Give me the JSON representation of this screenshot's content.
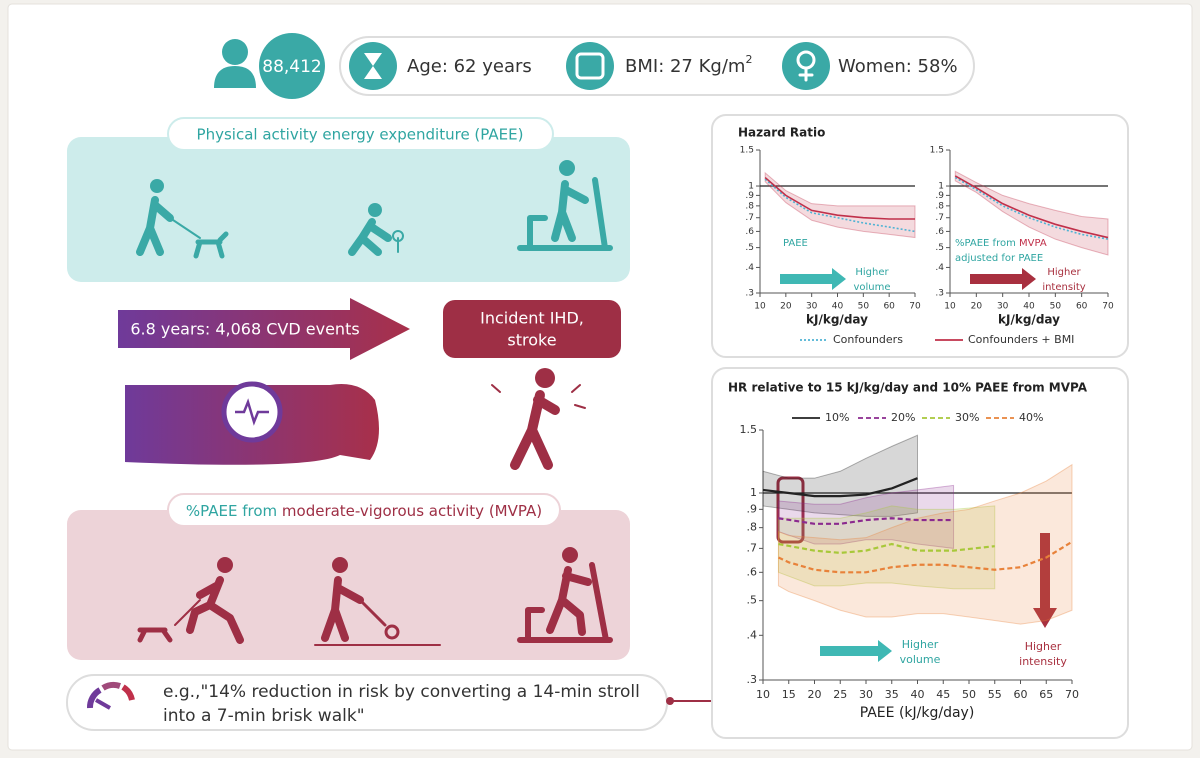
{
  "stats": {
    "count": "88,412",
    "age": "Age: 62 years",
    "bmi": "BMI: 27 Kg/m",
    "bmi_sup": "2",
    "women": "Women: 58%"
  },
  "paee_panel": {
    "title": "Physical activity energy expenditure (PAEE)"
  },
  "followup": "6.8 years: 4,068 CVD events",
  "outcome": [
    "Incident IHD,",
    "stroke"
  ],
  "mvpa_panel": {
    "title_part1": "%PAEE from",
    "title_part2": "moderate-vigorous activity (MVPA)"
  },
  "example": [
    "e.g.,\"14% reduction in risk by converting a 14-min stroll",
    "into a 7-min brisk walk\""
  ],
  "chart_data": [
    {
      "type": "line",
      "title": "Hazard Ratio",
      "log_y": true,
      "xlim": [
        10,
        70
      ],
      "ylim": [
        0.3,
        1.5
      ],
      "xticks": [
        10,
        20,
        30,
        40,
        50,
        60,
        70
      ],
      "yticks": [
        1.5,
        1,
        {
          "value": 0.9,
          "label": ".9"
        },
        {
          "value": 0.8,
          "label": ".8"
        },
        {
          "value": 0.7,
          "label": ".7"
        },
        {
          "value": 0.6,
          "label": ".6"
        },
        {
          "value": 0.5,
          "label": ".5"
        },
        {
          "value": 0.4,
          "label": ".4"
        },
        {
          "value": 0.3,
          "label": ".3"
        }
      ],
      "xlabel": "kJ/kg/day",
      "reference_line": 1,
      "legend": "bottom",
      "annotations": {
        "label": "PAEE",
        "arrow_text": [
          "Higher",
          "volume"
        ]
      },
      "series": [
        {
          "name": "Confounders",
          "color": "#4fb3d4",
          "dash": "dotted",
          "x": [
            12,
            20,
            30,
            40,
            50,
            60,
            70
          ],
          "values": [
            1.08,
            0.88,
            0.74,
            0.7,
            0.66,
            0.63,
            0.6
          ]
        },
        {
          "name": "Confounders + BMI",
          "color": "#c0304a",
          "dash": "solid",
          "x": [
            12,
            20,
            30,
            40,
            50,
            60,
            70
          ],
          "values": [
            1.1,
            0.9,
            0.76,
            0.72,
            0.7,
            0.69,
            0.69
          ],
          "ci_lower": [
            1.05,
            0.83,
            0.68,
            0.63,
            0.6,
            0.58,
            0.56
          ],
          "ci_upper": [
            1.16,
            0.95,
            0.82,
            0.8,
            0.8,
            0.8,
            0.8
          ]
        }
      ]
    },
    {
      "type": "line",
      "log_y": true,
      "xlim": [
        10,
        70
      ],
      "ylim": [
        0.3,
        1.5
      ],
      "xticks": [
        10,
        20,
        30,
        40,
        50,
        60,
        70
      ],
      "yticks": [
        1.5,
        1,
        {
          "value": 0.9,
          "label": ".9"
        },
        {
          "value": 0.8,
          "label": ".8"
        },
        {
          "value": 0.7,
          "label": ".7"
        },
        {
          "value": 0.6,
          "label": ".6"
        },
        {
          "value": 0.5,
          "label": ".5"
        },
        {
          "value": 0.4,
          "label": ".4"
        },
        {
          "value": 0.3,
          "label": ".3"
        }
      ],
      "xlabel": "kJ/kg/day",
      "reference_line": 1,
      "annotations": {
        "label": [
          "%PAEE from",
          "MVPA",
          "adjusted for PAEE"
        ],
        "arrow_text": [
          "Higher",
          "intensity"
        ]
      },
      "series": [
        {
          "color": "#4fb3d4",
          "dash": "dotted",
          "x": [
            12,
            20,
            30,
            40,
            50,
            60,
            70
          ],
          "values": [
            1.1,
            0.96,
            0.8,
            0.7,
            0.63,
            0.58,
            0.55
          ]
        },
        {
          "color": "#c0304a",
          "dash": "solid",
          "x": [
            12,
            20,
            30,
            40,
            50,
            60,
            70
          ],
          "values": [
            1.12,
            0.98,
            0.82,
            0.72,
            0.65,
            0.6,
            0.56
          ],
          "ci_lower": [
            1.06,
            0.93,
            0.75,
            0.63,
            0.55,
            0.5,
            0.46
          ],
          "ci_upper": [
            1.18,
            1.04,
            0.9,
            0.82,
            0.76,
            0.71,
            0.69
          ]
        }
      ]
    },
    {
      "type": "line",
      "title": "HR relative to 15 kJ/kg/day and 10% PAEE from MVPA",
      "log_y": true,
      "xlim": [
        10,
        70
      ],
      "ylim": [
        0.3,
        1.5
      ],
      "xticks": [
        10,
        15,
        20,
        25,
        30,
        35,
        40,
        45,
        50,
        55,
        60,
        65,
        70
      ],
      "yticks": [
        1.5,
        1,
        {
          "value": 0.9,
          "label": ".9"
        },
        {
          "value": 0.8,
          "label": ".8"
        },
        {
          "value": 0.7,
          "label": ".7"
        },
        {
          "value": 0.6,
          "label": ".6"
        },
        {
          "value": 0.5,
          "label": ".5"
        },
        {
          "value": 0.4,
          "label": ".4"
        },
        {
          "value": 0.3,
          "label": ".3"
        }
      ],
      "xlabel": "PAEE (kJ/kg/day)",
      "reference_line": 1,
      "legend": "top",
      "annotations": {
        "volume_text": [
          "Higher",
          "volume"
        ],
        "intensity_text": [
          "Higher",
          "intensity"
        ]
      },
      "series": [
        {
          "name": "10%",
          "color": "#222222",
          "dash": "solid",
          "x": [
            10,
            15,
            20,
            25,
            30,
            35,
            40
          ],
          "values": [
            1.02,
            1.0,
            0.98,
            0.98,
            0.99,
            1.03,
            1.1
          ],
          "ci_lower": [
            0.92,
            0.9,
            0.88,
            0.87,
            0.86,
            0.86,
            0.88
          ],
          "ci_upper": [
            1.15,
            1.1,
            1.1,
            1.15,
            1.25,
            1.35,
            1.45
          ]
        },
        {
          "name": "20%",
          "color": "#8b2a8f",
          "dash": "dashed",
          "x": [
            13,
            20,
            25,
            30,
            35,
            40,
            47
          ],
          "values": [
            0.85,
            0.82,
            0.82,
            0.84,
            0.85,
            0.84,
            0.84
          ],
          "ci_lower": [
            0.78,
            0.72,
            0.72,
            0.74,
            0.74,
            0.72,
            0.7
          ],
          "ci_upper": [
            0.95,
            0.93,
            0.93,
            0.97,
            1.0,
            1.02,
            1.05
          ]
        },
        {
          "name": "30%",
          "color": "#a8c83a",
          "dash": "dashed",
          "x": [
            13,
            20,
            25,
            30,
            35,
            40,
            47,
            55
          ],
          "values": [
            0.72,
            0.69,
            0.68,
            0.69,
            0.72,
            0.69,
            0.69,
            0.71
          ],
          "ci_lower": [
            0.6,
            0.55,
            0.55,
            0.56,
            0.56,
            0.55,
            0.54,
            0.54
          ],
          "ci_upper": [
            0.85,
            0.85,
            0.85,
            0.88,
            0.92,
            0.9,
            0.9,
            0.92
          ]
        },
        {
          "name": "40%",
          "color": "#e8823a",
          "dash": "dashed",
          "x": [
            13,
            15,
            20,
            25,
            30,
            35,
            40,
            45,
            50,
            55,
            60,
            65,
            70
          ],
          "values": [
            0.66,
            0.64,
            0.61,
            0.6,
            0.6,
            0.62,
            0.63,
            0.63,
            0.62,
            0.61,
            0.62,
            0.66,
            0.73
          ],
          "ci_lower": [
            0.55,
            0.53,
            0.5,
            0.47,
            0.45,
            0.45,
            0.46,
            0.46,
            0.45,
            0.44,
            0.43,
            0.44,
            0.47
          ],
          "ci_upper": [
            0.78,
            0.76,
            0.75,
            0.74,
            0.75,
            0.8,
            0.85,
            0.88,
            0.9,
            0.95,
            1.0,
            1.08,
            1.2
          ]
        }
      ]
    }
  ]
}
